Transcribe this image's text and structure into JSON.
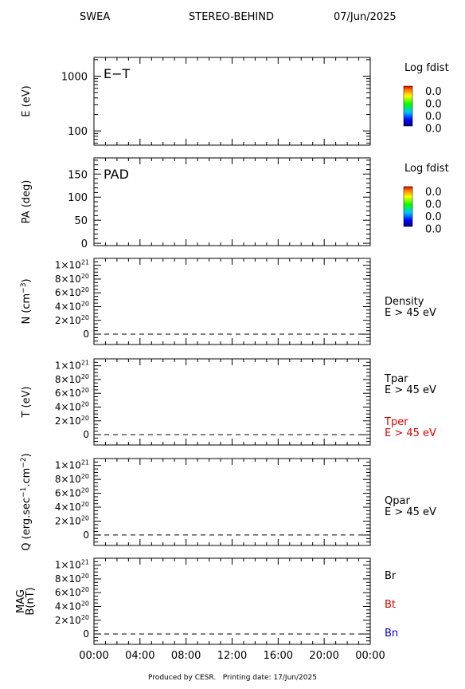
{
  "header": {
    "instrument": "SWEA",
    "spacecraft": "STEREO-BEHIND",
    "date": "07/Jun/2025"
  },
  "footer": {
    "produced_by": "Produced by CESR.",
    "printing_date": "Printing date: 17/Jun/2025"
  },
  "time_axis": {
    "ticks": [
      "00:00",
      "04:00",
      "08:00",
      "12:00",
      "16:00",
      "20:00",
      "00:00"
    ]
  },
  "chart_data": [
    {
      "type": "heatmap",
      "panel": "energy-time",
      "title": "E−T",
      "ylabel": "E (eV)",
      "yscale": "log",
      "yticks": [
        100,
        1000
      ],
      "ytick_labels": [
        "100",
        "1000"
      ],
      "colorbar": {
        "title": "Log fdist",
        "values": [
          "0.0",
          "0.0",
          "0.0",
          "0.0"
        ]
      },
      "values": []
    },
    {
      "type": "heatmap",
      "panel": "pitch-angle",
      "title": "PAD",
      "ylabel": "PA (deg)",
      "ylim": [
        -5,
        185
      ],
      "yticks": [
        0,
        50,
        100,
        150
      ],
      "ytick_labels": [
        "0",
        "50",
        "100",
        "150"
      ],
      "colorbar": {
        "title": "Log fdist",
        "values": [
          "0.0",
          "0.0",
          "0.0",
          "0.0"
        ]
      },
      "values": []
    },
    {
      "type": "line",
      "panel": "density",
      "ylabel": "N (cm^-3)",
      "ylim": [
        -1.5e+20,
        1.1e+21
      ],
      "yticks": [
        0,
        2e+20,
        4e+20,
        6e+20,
        8e+20,
        1e+21
      ],
      "series": [
        {
          "name": "Density",
          "sublabel": "E > 45 eV",
          "color": "#000000",
          "style": "dashed",
          "x": [
            "00:00",
            "00:00"
          ],
          "y": [
            0,
            0
          ]
        }
      ]
    },
    {
      "type": "line",
      "panel": "temperature",
      "ylabel": "T (eV)",
      "ylim": [
        -1.5e+20,
        1.1e+21
      ],
      "yticks": [
        0,
        2e+20,
        4e+20,
        6e+20,
        8e+20,
        1e+21
      ],
      "series": [
        {
          "name": "Tpar",
          "sublabel": "E > 45 eV",
          "color": "#000000",
          "style": "dashed",
          "x": [
            "00:00",
            "00:00"
          ],
          "y": [
            0,
            0
          ]
        },
        {
          "name": "Tper",
          "sublabel": "E > 45 eV",
          "color": "#e00000",
          "style": "dashed",
          "x": [
            "00:00",
            "00:00"
          ],
          "y": [
            0,
            0
          ]
        }
      ]
    },
    {
      "type": "line",
      "panel": "heat-flux",
      "ylabel": "Q (erg.sec^-1.cm^-2)",
      "ylim": [
        -1.5e+20,
        1.1e+21
      ],
      "yticks": [
        0,
        2e+20,
        4e+20,
        6e+20,
        8e+20,
        1e+21
      ],
      "series": [
        {
          "name": "Qpar",
          "sublabel": "E > 45 eV",
          "color": "#000000",
          "style": "dashed",
          "x": [
            "00:00",
            "00:00"
          ],
          "y": [
            0,
            0
          ]
        }
      ]
    },
    {
      "type": "line",
      "panel": "magnetic-field",
      "ylabel": "MAG B(nT)",
      "ylim": [
        -1.5e+20,
        1.1e+21
      ],
      "yticks": [
        0,
        2e+20,
        4e+20,
        6e+20,
        8e+20,
        1e+21
      ],
      "series": [
        {
          "name": "Br",
          "color": "#000000",
          "style": "dashed",
          "x": [
            "00:00",
            "00:00"
          ],
          "y": [
            0,
            0
          ]
        },
        {
          "name": "Bt",
          "color": "#e00000",
          "style": "dashed",
          "x": [
            "00:00",
            "00:00"
          ],
          "y": [
            0,
            0
          ]
        },
        {
          "name": "Bn",
          "color": "#0000c8",
          "style": "dashed",
          "x": [
            "00:00",
            "00:00"
          ],
          "y": [
            0,
            0
          ]
        }
      ]
    }
  ]
}
